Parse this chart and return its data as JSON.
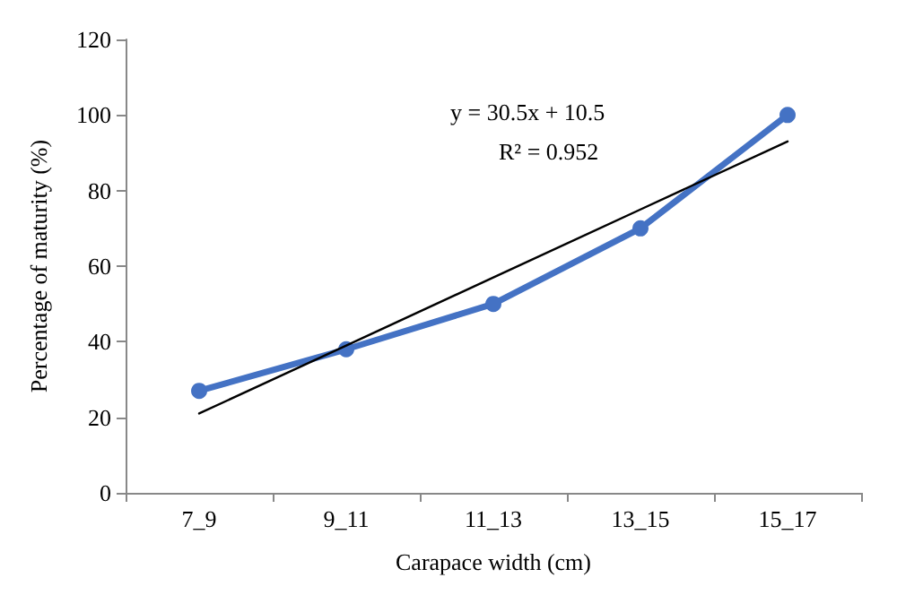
{
  "chart_data": {
    "type": "line",
    "xlabel": "Carapace width (cm)",
    "ylabel": "Percentage of maturity (%)",
    "categories": [
      "7_9",
      "9_11",
      "11_13",
      "13_15",
      "15_17"
    ],
    "series": [
      {
        "color": "#4472c4",
        "values": [
          27,
          38,
          50,
          70,
          100
        ],
        "marker": "circle"
      },
      {
        "color": "#000000",
        "values": [
          21,
          39,
          57,
          75,
          93
        ],
        "marker": "none"
      }
    ],
    "ylim": [
      0,
      120
    ],
    "yticks": [
      0,
      20,
      40,
      60,
      80,
      100,
      120
    ],
    "grid": false,
    "annotations": [
      "y = 30.5x + 10.5",
      "R² = 0.952"
    ]
  }
}
